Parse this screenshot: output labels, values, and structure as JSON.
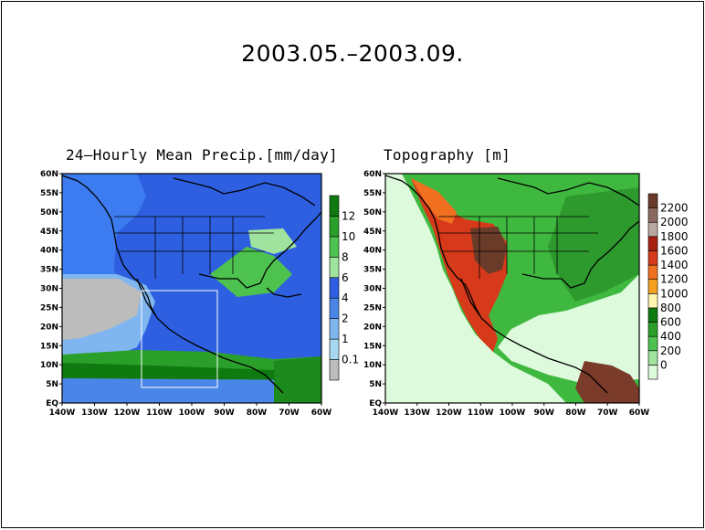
{
  "title": "2003.05.–2003.09.",
  "panels": [
    {
      "title": "24–Hourly Mean Precip.[mm/day]",
      "lat_labels": [
        "60N",
        "55N",
        "50N",
        "45N",
        "40N",
        "35N",
        "30N",
        "25N",
        "20N",
        "15N",
        "10N",
        "5N",
        "EQ"
      ],
      "lon_labels": [
        "140W",
        "130W",
        "120W",
        "110W",
        "100W",
        "90W",
        "80W",
        "70W",
        "60W"
      ],
      "colorbar": {
        "labels": [
          "0.1",
          "1",
          "2",
          "4",
          "6",
          "8",
          "10",
          "12"
        ],
        "colors": [
          "#bcbcbc",
          "#a8d8f0",
          "#7fb6f0",
          "#4a86e8",
          "#2e5fe0",
          "#9fe39f",
          "#4ec24e",
          "#2aa02a",
          "#0f7a0f"
        ]
      }
    },
    {
      "title": "Topography [m]",
      "lat_labels": [
        "60N",
        "55N",
        "50N",
        "45N",
        "40N",
        "35N",
        "30N",
        "25N",
        "20N",
        "15N",
        "10N",
        "5N",
        "EQ"
      ],
      "lon_labels": [
        "140W",
        "130W",
        "120W",
        "110W",
        "100W",
        "90W",
        "80W",
        "70W",
        "60W"
      ],
      "colorbar": {
        "labels": [
          "0",
          "200",
          "400",
          "600",
          "800",
          "1000",
          "1200",
          "1400",
          "1600",
          "1800",
          "2000",
          "2200"
        ],
        "colors": [
          "#ddfadd",
          "#9fe39f",
          "#4ec24e",
          "#2aa02a",
          "#0f7a0f",
          "#fff7b0",
          "#f5a020",
          "#f07020",
          "#d63a1a",
          "#a82010",
          "#b8a8a0",
          "#8a6a60",
          "#6b3b2a"
        ]
      }
    }
  ]
}
